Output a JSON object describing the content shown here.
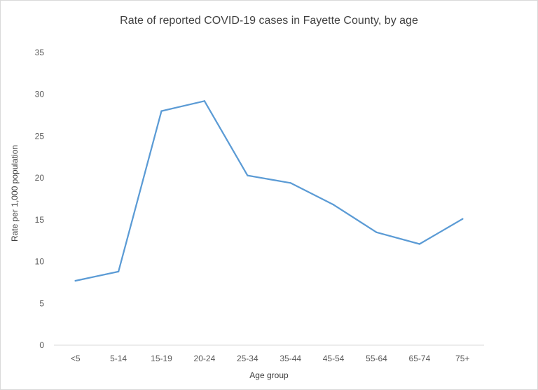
{
  "chart_data": {
    "type": "line",
    "title": "Rate of reported COVID-19 cases in Fayette County, by age",
    "xlabel": "Age group",
    "ylabel": "Rate per 1,000 population",
    "categories": [
      "<5",
      "5-14",
      "15-19",
      "20-24",
      "25-34",
      "35-44",
      "45-54",
      "55-64",
      "65-74",
      "75+"
    ],
    "series": [
      {
        "values": [
          7.7,
          8.8,
          28.0,
          29.2,
          20.3,
          19.4,
          16.8,
          13.5,
          12.1,
          15.1
        ],
        "color": "#5b9bd5"
      }
    ],
    "ylim": [
      0,
      35
    ],
    "yticks": [
      0,
      5,
      10,
      15,
      20,
      25,
      30,
      35
    ],
    "grid": false,
    "legend": "none"
  }
}
